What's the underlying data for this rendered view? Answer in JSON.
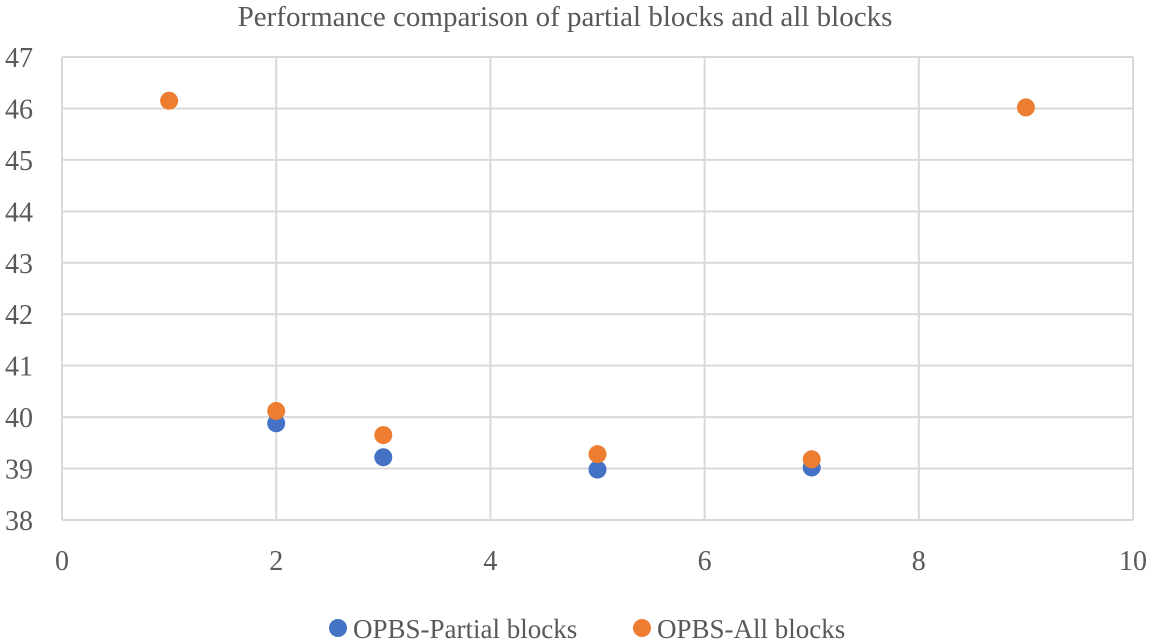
{
  "chart_data": {
    "type": "scatter",
    "title": "Performance comparison of partial blocks and all blocks",
    "xlabel": "",
    "ylabel": "",
    "xlim": [
      0,
      10
    ],
    "ylim": [
      38,
      47
    ],
    "xticks": [
      0,
      2,
      4,
      6,
      8,
      10
    ],
    "yticks": [
      38,
      39,
      40,
      41,
      42,
      43,
      44,
      45,
      46,
      47
    ],
    "grid": true,
    "legend_position": "bottom",
    "series": [
      {
        "name": "OPBS-Partial blocks",
        "color": "#4472c4",
        "points": [
          {
            "x": 2,
            "y": 39.88
          },
          {
            "x": 3,
            "y": 39.22
          },
          {
            "x": 5,
            "y": 38.98
          },
          {
            "x": 7,
            "y": 39.02
          }
        ]
      },
      {
        "name": "OPBS-All blocks",
        "color": "#ed7d31",
        "points": [
          {
            "x": 1,
            "y": 46.15
          },
          {
            "x": 2,
            "y": 40.12
          },
          {
            "x": 3,
            "y": 39.65
          },
          {
            "x": 5,
            "y": 39.28
          },
          {
            "x": 7,
            "y": 39.18
          },
          {
            "x": 9,
            "y": 46.02
          }
        ]
      }
    ]
  }
}
